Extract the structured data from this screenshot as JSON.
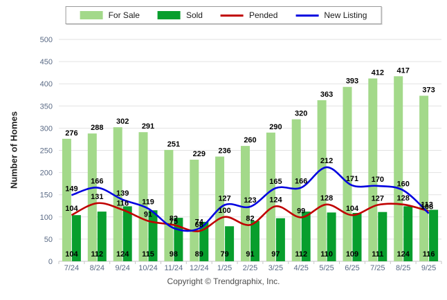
{
  "legend": {
    "items": [
      {
        "label": "For Sale",
        "swatch": "bar",
        "color": "#a3d98a"
      },
      {
        "label": "Sold",
        "swatch": "bar",
        "color": "#089e2d"
      },
      {
        "label": "Pended",
        "swatch": "line",
        "color": "#c00000"
      },
      {
        "label": "New Listing",
        "swatch": "line",
        "color": "#0000e0"
      }
    ]
  },
  "ylabel": "Number of Homes",
  "footer": "Copyright © Trendgraphix, Inc.",
  "colors": {
    "for_sale": "#a3d98a",
    "sold": "#089e2d",
    "pended": "#c00000",
    "new_listing": "#0000e0",
    "grid": "#e2e2e2",
    "axis": "#c6c6c6",
    "tick_label": "#5a6a85",
    "value_label": "#000000"
  },
  "chart_data": {
    "type": "bar",
    "subtype": "grouped bars with smoothed line overlays",
    "title": "",
    "xlabel": "",
    "ylabel": "Number of Homes",
    "ylim": [
      0,
      500
    ],
    "ytick_step": 50,
    "grid": true,
    "legend_position": "top",
    "categories": [
      "7/24",
      "8/24",
      "9/24",
      "10/24",
      "11/24",
      "12/24",
      "1/25",
      "2/25",
      "3/25",
      "4/25",
      "5/25",
      "6/25",
      "7/25",
      "8/25",
      "9/25"
    ],
    "series": [
      {
        "name": "For Sale",
        "type": "bar",
        "color": "#a3d98a",
        "values": [
          276,
          288,
          302,
          291,
          251,
          229,
          236,
          260,
          290,
          320,
          363,
          393,
          412,
          417,
          373
        ]
      },
      {
        "name": "Sold",
        "type": "bar",
        "color": "#089e2d",
        "values": [
          104,
          112,
          124,
          115,
          98,
          89,
          79,
          91,
          97,
          112,
          110,
          109,
          111,
          124,
          116
        ]
      },
      {
        "name": "Pended",
        "type": "line",
        "color": "#c00000",
        "values": [
          104,
          131,
          116,
          91,
          82,
          68,
          100,
          82,
          124,
          99,
          128,
          104,
          127,
          128,
          113
        ]
      },
      {
        "name": "New Listing",
        "type": "line",
        "color": "#0000e0",
        "values": [
          149,
          166,
          139,
          119,
          75,
          74,
          127,
          123,
          165,
          166,
          212,
          171,
          170,
          160,
          108
        ]
      }
    ],
    "footer": "Copyright © Trendgraphix, Inc."
  }
}
